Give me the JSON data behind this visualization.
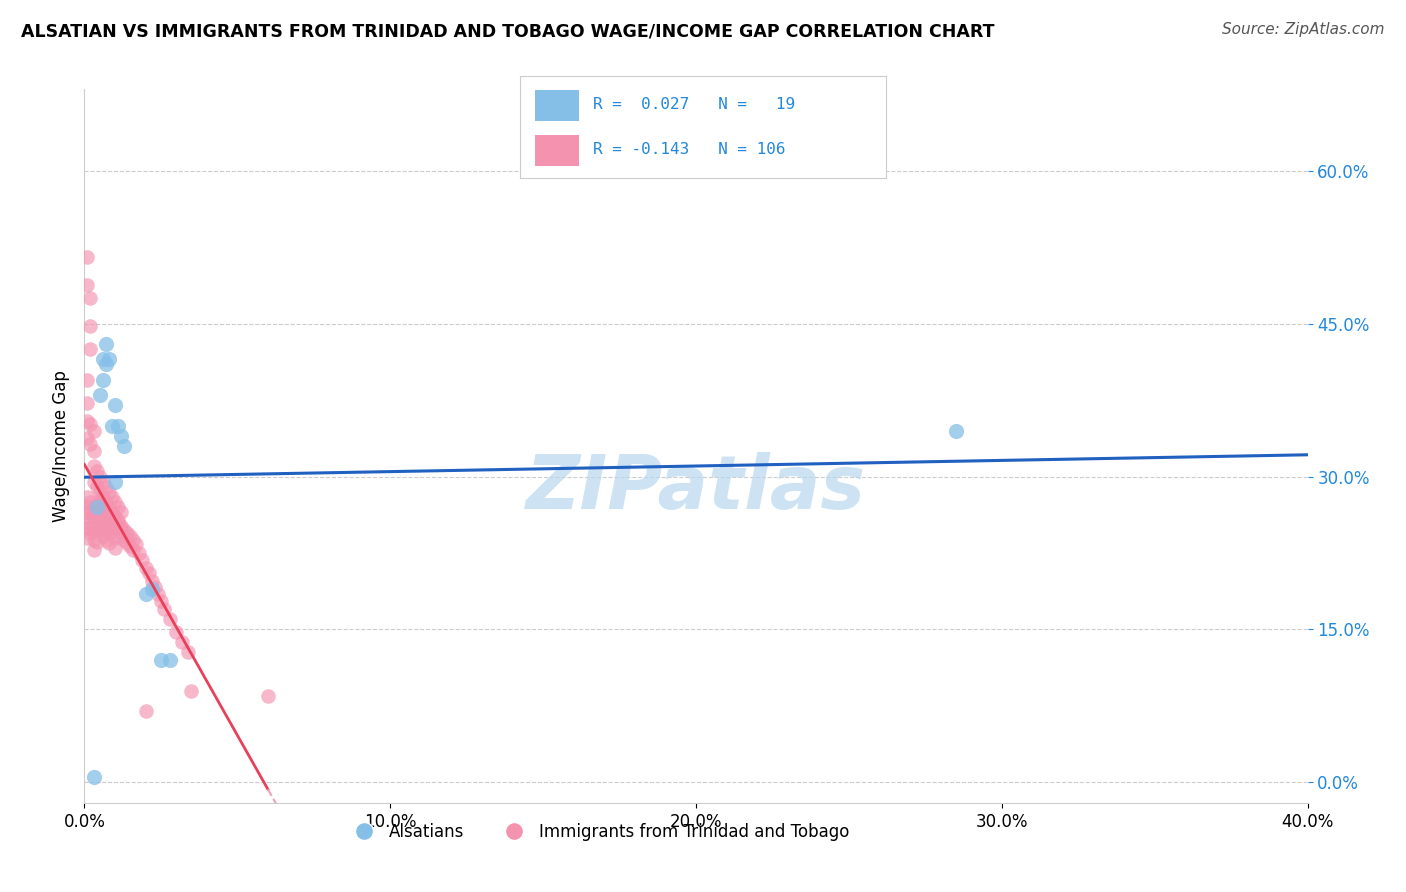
{
  "title": "ALSATIAN VS IMMIGRANTS FROM TRINIDAD AND TOBAGO WAGE/INCOME GAP CORRELATION CHART",
  "source": "Source: ZipAtlas.com",
  "ylabel": "Wage/Income Gap",
  "xmin": 0.0,
  "xmax": 0.4,
  "ymin": -0.02,
  "ymax": 0.68,
  "yticks": [
    0.0,
    0.15,
    0.3,
    0.45,
    0.6
  ],
  "xticks": [
    0.0,
    0.1,
    0.2,
    0.3,
    0.4
  ],
  "grid_color": "#cccccc",
  "background_color": "#ffffff",
  "watermark": "ZIPatlas",
  "watermark_color": "#b8d8f0",
  "alsatians_color": "#85bfe8",
  "immigrants_color": "#f493b0",
  "blue_line_color": "#2060c0",
  "pink_line_color": "#e8405a",
  "pink_dash_color": "#f0a0b8",
  "legend_color": "#2288dd",
  "alsatians_x": [
    0.003,
    0.004,
    0.005,
    0.006,
    0.006,
    0.007,
    0.007,
    0.008,
    0.009,
    0.01,
    0.01,
    0.011,
    0.012,
    0.013,
    0.02,
    0.022,
    0.025,
    0.028,
    0.285
  ],
  "alsatians_y": [
    0.005,
    0.27,
    0.38,
    0.395,
    0.415,
    0.43,
    0.41,
    0.415,
    0.35,
    0.295,
    0.37,
    0.35,
    0.34,
    0.33,
    0.185,
    0.19,
    0.12,
    0.12,
    0.345
  ],
  "immigrants_x": [
    0.001,
    0.001,
    0.001,
    0.001,
    0.001,
    0.001,
    0.002,
    0.002,
    0.002,
    0.002,
    0.002,
    0.003,
    0.003,
    0.003,
    0.003,
    0.003,
    0.004,
    0.004,
    0.004,
    0.004,
    0.005,
    0.005,
    0.005,
    0.005,
    0.005,
    0.005,
    0.006,
    0.006,
    0.006,
    0.006,
    0.007,
    0.007,
    0.007,
    0.007,
    0.008,
    0.008,
    0.008,
    0.008,
    0.009,
    0.009,
    0.01,
    0.01,
    0.01,
    0.01,
    0.011,
    0.011,
    0.012,
    0.012,
    0.013,
    0.013,
    0.014,
    0.014,
    0.015,
    0.015,
    0.016,
    0.016,
    0.017,
    0.018,
    0.019,
    0.02,
    0.021,
    0.022,
    0.023,
    0.024,
    0.025,
    0.026,
    0.028,
    0.03,
    0.032,
    0.034,
    0.003,
    0.003,
    0.004,
    0.004,
    0.005,
    0.005,
    0.006,
    0.006,
    0.007,
    0.007,
    0.008,
    0.008,
    0.009,
    0.009,
    0.01,
    0.01,
    0.011,
    0.011,
    0.012,
    0.012,
    0.002,
    0.002,
    0.003,
    0.003,
    0.001,
    0.001,
    0.002,
    0.002,
    0.001,
    0.001,
    0.001,
    0.001,
    0.002,
    0.02,
    0.035,
    0.06
  ],
  "immigrants_y": [
    0.27,
    0.255,
    0.24,
    0.28,
    0.265,
    0.25,
    0.275,
    0.265,
    0.25,
    0.26,
    0.245,
    0.27,
    0.26,
    0.248,
    0.238,
    0.228,
    0.272,
    0.26,
    0.248,
    0.236,
    0.278,
    0.268,
    0.258,
    0.248,
    0.265,
    0.252,
    0.272,
    0.262,
    0.252,
    0.242,
    0.268,
    0.258,
    0.248,
    0.238,
    0.265,
    0.255,
    0.245,
    0.235,
    0.262,
    0.252,
    0.26,
    0.25,
    0.24,
    0.23,
    0.257,
    0.247,
    0.252,
    0.242,
    0.248,
    0.238,
    0.245,
    0.235,
    0.242,
    0.232,
    0.238,
    0.228,
    0.234,
    0.225,
    0.218,
    0.21,
    0.205,
    0.198,
    0.192,
    0.185,
    0.178,
    0.17,
    0.16,
    0.148,
    0.138,
    0.128,
    0.31,
    0.295,
    0.305,
    0.29,
    0.3,
    0.285,
    0.295,
    0.28,
    0.29,
    0.275,
    0.285,
    0.27,
    0.28,
    0.265,
    0.275,
    0.26,
    0.27,
    0.255,
    0.265,
    0.25,
    0.352,
    0.332,
    0.345,
    0.325,
    0.515,
    0.488,
    0.475,
    0.448,
    0.395,
    0.372,
    0.355,
    0.338,
    0.425,
    0.07,
    0.09,
    0.085
  ]
}
